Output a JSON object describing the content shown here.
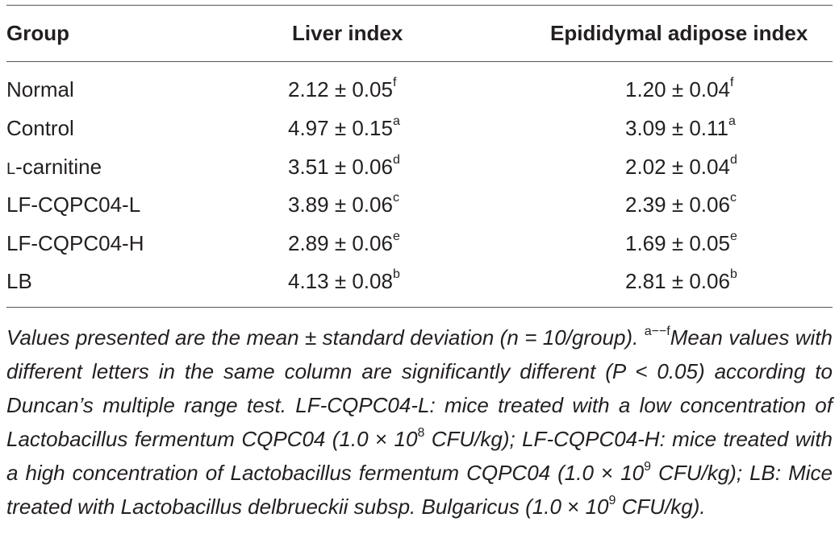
{
  "table": {
    "headers": [
      "Group",
      "Liver index",
      "Epididymal adipose index"
    ],
    "rows": [
      {
        "group": "Normal",
        "liver": "2.12 ± 0.05",
        "liver_sup": "f",
        "adipose": "1.20 ± 0.04",
        "adipose_sup": "f"
      },
      {
        "group": "Control",
        "liver": "4.97 ± 0.15",
        "liver_sup": "a",
        "adipose": "3.09 ± 0.11",
        "adipose_sup": "a"
      },
      {
        "group_sc": "L",
        "group": "-carnitine",
        "liver": "3.51 ± 0.06",
        "liver_sup": "d",
        "adipose": "2.02 ± 0.04",
        "adipose_sup": "d"
      },
      {
        "group": "LF-CQPC04-L",
        "liver": "3.89 ± 0.06",
        "liver_sup": "c",
        "adipose": "2.39 ± 0.06",
        "adipose_sup": "c"
      },
      {
        "group": "LF-CQPC04-H",
        "liver": "2.89 ± 0.06",
        "liver_sup": "e",
        "adipose": "1.69 ± 0.05",
        "adipose_sup": "e"
      },
      {
        "group": "LB",
        "liver": "4.13 ± 0.08",
        "liver_sup": "b",
        "adipose": "2.81 ± 0.06",
        "adipose_sup": "b"
      }
    ]
  },
  "footnote": {
    "p1": "Values presented are the mean ± standard deviation (n = 10/group). ",
    "sup_range": "a−−f",
    "p2": "Mean values with different letters in the same column are significantly different (P < 0.05) according to Duncan’s multiple range test. LF-CQPC04-L: mice treated with a low concentration of Lactobacillus fermentum CQPC04 (1.0 ",
    "times1": "×",
    "p3": " 10",
    "exp1": "8",
    "p4": " CFU/kg); LF-CQPC04-H: mice treated with a high concentration of Lactobacillus fermentum CQPC04 (1.0 ",
    "times2": "×",
    "p5": " 10",
    "exp2": "9",
    "p6": " CFU/kg); LB: Mice treated with Lactobacillus delbrueckii subsp. Bulgaricus (1.0 ",
    "times3": "×",
    "p7": " 10",
    "exp3": "9",
    "p8": " CFU/kg)."
  }
}
